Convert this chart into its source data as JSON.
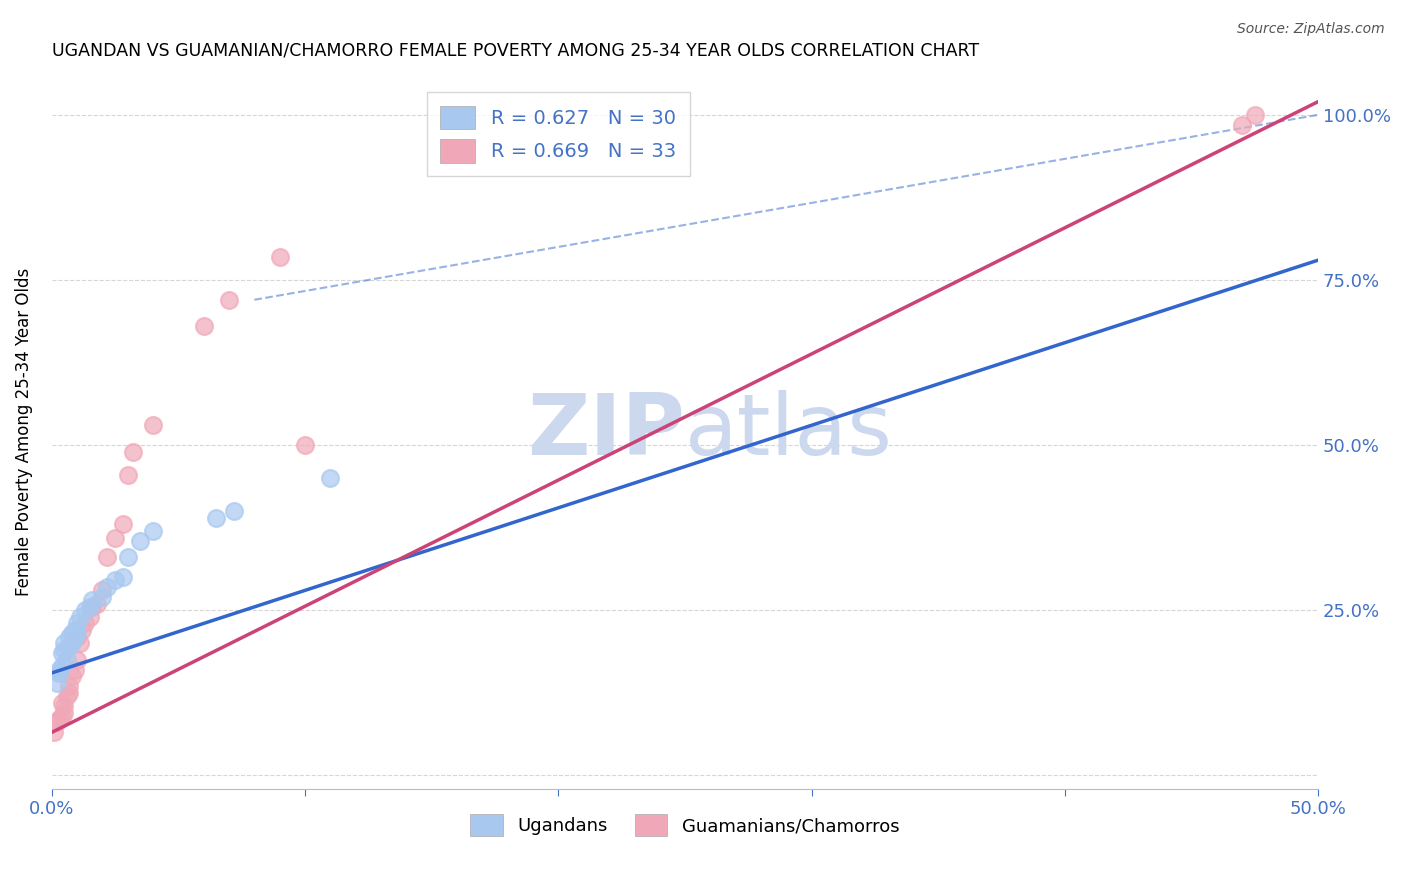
{
  "title": "UGANDAN VS GUAMANIAN/CHAMORRO FEMALE POVERTY AMONG 25-34 YEAR OLDS CORRELATION CHART",
  "source": "Source: ZipAtlas.com",
  "ylabel": "Female Poverty Among 25-34 Year Olds",
  "xlim": [
    0.0,
    0.5
  ],
  "ylim": [
    -0.02,
    1.06
  ],
  "blue_R": 0.627,
  "blue_N": 30,
  "pink_R": 0.669,
  "pink_N": 33,
  "blue_color": "#a8c8f0",
  "pink_color": "#f0a8b8",
  "blue_line_color": "#3366cc",
  "pink_line_color": "#cc4477",
  "blue_scatter_x": [
    0.002,
    0.003,
    0.003,
    0.004,
    0.004,
    0.005,
    0.005,
    0.006,
    0.007,
    0.007,
    0.008,
    0.008,
    0.009,
    0.009,
    0.01,
    0.01,
    0.011,
    0.013,
    0.015,
    0.016,
    0.02,
    0.022,
    0.025,
    0.028,
    0.03,
    0.035,
    0.04,
    0.065,
    0.072,
    0.11
  ],
  "blue_scatter_y": [
    0.14,
    0.155,
    0.16,
    0.165,
    0.185,
    0.19,
    0.2,
    0.175,
    0.195,
    0.21,
    0.2,
    0.215,
    0.21,
    0.22,
    0.23,
    0.215,
    0.24,
    0.25,
    0.255,
    0.265,
    0.27,
    0.285,
    0.295,
    0.3,
    0.33,
    0.355,
    0.37,
    0.39,
    0.4,
    0.45
  ],
  "pink_scatter_x": [
    0.001,
    0.002,
    0.003,
    0.004,
    0.004,
    0.005,
    0.005,
    0.006,
    0.007,
    0.007,
    0.008,
    0.009,
    0.01,
    0.01,
    0.011,
    0.012,
    0.013,
    0.015,
    0.016,
    0.018,
    0.02,
    0.022,
    0.025,
    0.028,
    0.03,
    0.032,
    0.04,
    0.06,
    0.07,
    0.09,
    0.1,
    0.47,
    0.475
  ],
  "pink_scatter_y": [
    0.065,
    0.08,
    0.085,
    0.09,
    0.11,
    0.095,
    0.105,
    0.12,
    0.125,
    0.135,
    0.15,
    0.16,
    0.175,
    0.21,
    0.2,
    0.22,
    0.23,
    0.24,
    0.255,
    0.26,
    0.28,
    0.33,
    0.36,
    0.38,
    0.455,
    0.49,
    0.53,
    0.68,
    0.72,
    0.785,
    0.5,
    0.985,
    1.0
  ],
  "blue_line_x0": 0.0,
  "blue_line_y0": 0.155,
  "blue_line_x1": 0.5,
  "blue_line_y1": 0.78,
  "pink_line_x0": 0.0,
  "pink_line_y0": 0.065,
  "pink_line_x1": 0.5,
  "pink_line_y1": 1.02,
  "dash_line_x0": 0.08,
  "dash_line_y0": 0.72,
  "dash_line_x1": 0.5,
  "dash_line_y1": 1.0,
  "watermark_text": "ZIPatlas",
  "watermark_color": "#ccd8ee",
  "background_color": "#ffffff",
  "grid_color": "#cccccc",
  "axis_color": "#4472c4"
}
